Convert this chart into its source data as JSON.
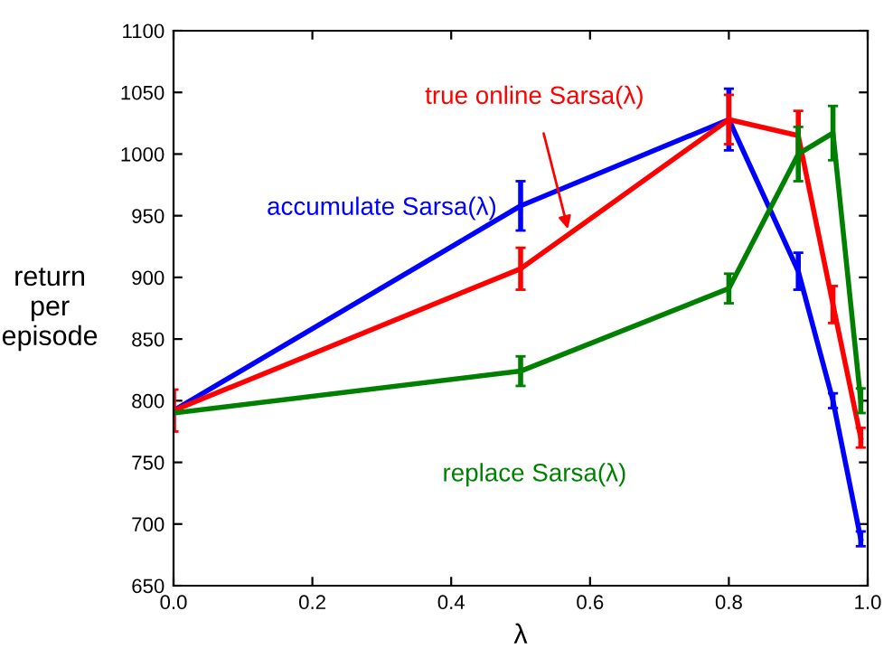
{
  "chart_data": {
    "type": "line",
    "xlabel": "λ",
    "ylabel": "return\nper\nepisode",
    "xlim": [
      0,
      1
    ],
    "xticks": [
      {
        "value": 0,
        "label": "0.0"
      },
      {
        "value": 0.2,
        "label": "0.2"
      },
      {
        "value": 0.4,
        "label": "0.4"
      },
      {
        "value": 0.6,
        "label": "0.6"
      },
      {
        "value": 0.8,
        "label": "0.8"
      },
      {
        "value": 1,
        "label": "1.0"
      }
    ],
    "ylim": [
      650,
      1100
    ],
    "yticks": [
      650,
      700,
      750,
      800,
      850,
      900,
      950,
      1000,
      1050,
      1100
    ],
    "grid": false,
    "legend": false,
    "marker": "none",
    "line_style": "solid",
    "x": [
      0,
      0.5,
      0.8,
      0.9,
      0.95,
      0.99
    ],
    "series": [
      {
        "name": "accumulate Sarsa(λ)",
        "color": "#0000ff",
        "values": [
          792,
          958,
          1028,
          905,
          800,
          688
        ],
        "errors": [
          null,
          20,
          25,
          15,
          6,
          6
        ]
      },
      {
        "name": "true online Sarsa(λ)",
        "color": "#ff0000",
        "values": [
          792,
          907,
          1028,
          1015,
          878,
          770
        ],
        "errors": [
          17,
          17,
          20,
          20,
          15,
          8
        ]
      },
      {
        "name": "replace Sarsa(λ)",
        "color": "#008000",
        "values": [
          790,
          824,
          891,
          1000,
          1017,
          800
        ],
        "errors": [
          null,
          12,
          12,
          22,
          22,
          10
        ]
      }
    ]
  }
}
